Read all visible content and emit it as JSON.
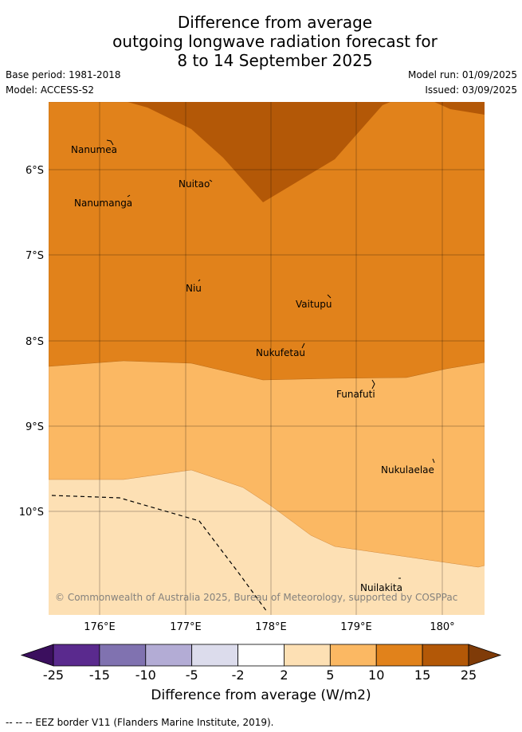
{
  "title": [
    "Difference from average",
    "outgoing longwave radiation forecast for",
    "8 to 14 September 2025"
  ],
  "base_period": "Base period: 1981-2018",
  "model": "Model: ACCESS-S2",
  "model_run": "Model run: 01/09/2025",
  "issued": "Issued: 03/09/2025",
  "copyright": "© Commonwealth of Australia 2025, Bureau of Meteorology, supported by COSPPac",
  "lat_labels": [
    "6°S",
    "7°S",
    "8°S",
    "9°S",
    "10°S"
  ],
  "lon_labels": [
    "176°E",
    "177°E",
    "178°E",
    "179°E",
    "180°"
  ],
  "places": [
    "Nanumea",
    "Nuitao",
    "Nanumanga",
    "Niu",
    "Vaitupu",
    "Nukufetau",
    "Funafuti",
    "Nukulaelae",
    "Nuilakita"
  ],
  "colorbar": {
    "labels": [
      "-25",
      "-15",
      "-10",
      "-5",
      "-2",
      "2",
      "5",
      "10",
      "15",
      "25"
    ],
    "colors": [
      "#3b0f5e",
      "#5a2a8e",
      "#8072b0",
      "#b3acd5",
      "#dcdcec",
      "#ffffff",
      "#fde0b4",
      "#fbb863",
      "#e1821b",
      "#b35807",
      "#7f3b08"
    ],
    "title": "Difference from average (W/m2)"
  },
  "footer": "-- -- -- EEZ border V11 (Flanders Marine Institute, 2019).",
  "colors": {
    "band_15_25": "#b35807",
    "band_10_15": "#e1821b",
    "band_5_10": "#fbb863",
    "band_2_5": "#fde0b4"
  }
}
